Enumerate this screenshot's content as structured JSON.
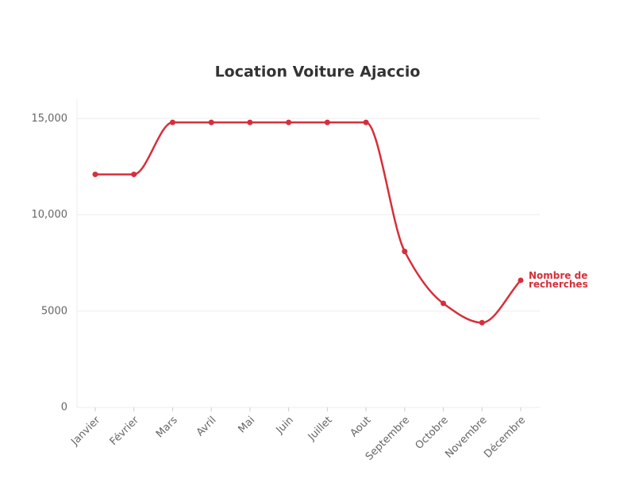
{
  "chart_data": {
    "type": "line",
    "title": "Location Voiture Ajaccio",
    "categories": [
      "Janvier",
      "Février",
      "Mars",
      "Avril",
      "Mai",
      "Juin",
      "Juillet",
      "Aout",
      "Septembre",
      "Octobre",
      "Novembre",
      "Décembre"
    ],
    "series": [
      {
        "name": "Nombre de recherches",
        "color": "#d62f3a",
        "values": [
          12100,
          12100,
          14800,
          14800,
          14800,
          14800,
          14800,
          14800,
          8100,
          5400,
          4400,
          6600
        ]
      }
    ],
    "ylim": [
      0,
      16000
    ],
    "yticks": [
      0,
      5000,
      {
        "value": 10000,
        "label": "10,000"
      },
      {
        "value": 15000,
        "label": "15,000"
      }
    ],
    "grid": true
  }
}
